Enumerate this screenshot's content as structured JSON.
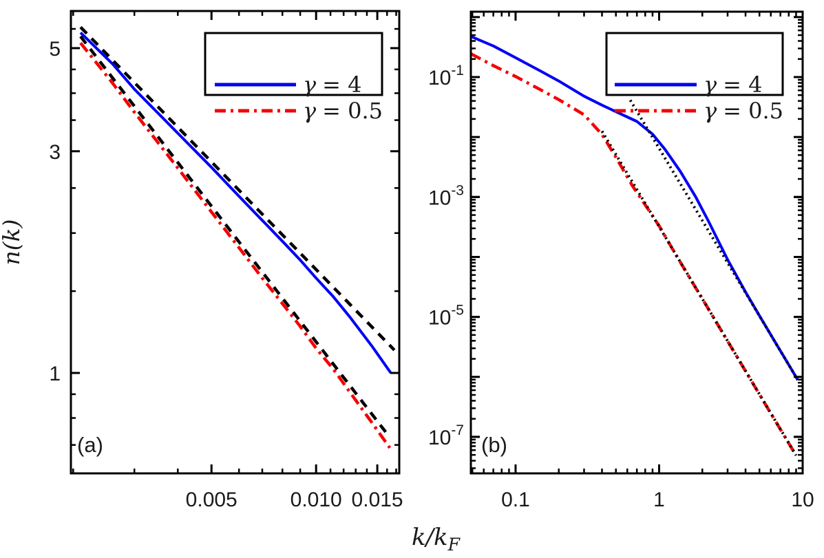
{
  "figure": {
    "background": "#ffffff",
    "xlabel": {
      "text": "k/k_F",
      "base": "k/k",
      "sub": "F"
    },
    "colors": {
      "blue": "#0000f5",
      "red": "#f50000",
      "black": "#000000",
      "text": "#1a1a1a",
      "axis": "#000000"
    },
    "legend": {
      "entries": [
        {
          "sym": "γ",
          "rest": "= 4",
          "label": "γ = 4",
          "color": "#0000f5",
          "style": "solid"
        },
        {
          "sym": "γ",
          "rest": "= 0.5",
          "label": "γ = 0.5",
          "color": "#f50000",
          "style": "dashdot"
        }
      ]
    }
  },
  "chart_data": [
    {
      "id": "a",
      "type": "line",
      "tag": "(a)",
      "ylabel": "n(k)",
      "x_scale": "log",
      "y_scale": "log",
      "xlim": [
        0.00197,
        0.01735
      ],
      "ylim": [
        0.608,
        6.01
      ],
      "x_ticks": [
        {
          "v": 0.005,
          "label": "0.005"
        },
        {
          "v": 0.01,
          "label": "0.010"
        },
        {
          "v": 0.015,
          "label": "0.015"
        }
      ],
      "x_minor": [
        0.002,
        0.003,
        0.004,
        0.006,
        0.007,
        0.008,
        0.009,
        0.011,
        0.012,
        0.013,
        0.014,
        0.016,
        0.017
      ],
      "y_ticks": [
        {
          "v": 1,
          "label": "1"
        },
        {
          "v": 3,
          "label": "3"
        },
        {
          "v": 5,
          "label": "5"
        }
      ],
      "y_minor": [
        0.7,
        0.8,
        0.9,
        1.5,
        2,
        2.5,
        3.5,
        4,
        4.5,
        5.5
      ],
      "series": [
        {
          "name": "gamma-4-curve",
          "legend": "γ = 4",
          "color": "#0000f5",
          "style": "solid",
          "points": [
            [
              0.0021,
              5.4
            ],
            [
              0.0026,
              4.62
            ],
            [
              0.003,
              4.08
            ],
            [
              0.004,
              3.28
            ],
            [
              0.005,
              2.77
            ],
            [
              0.006,
              2.4
            ],
            [
              0.007,
              2.13
            ],
            [
              0.008,
              1.92
            ],
            [
              0.009,
              1.75
            ],
            [
              0.01,
              1.6
            ],
            [
              0.0112,
              1.46
            ],
            [
              0.0125,
              1.32
            ],
            [
              0.0145,
              1.14
            ],
            [
              0.0164,
              1.0
            ]
          ]
        },
        {
          "name": "gamma-05-curve",
          "legend": "γ = 0.5",
          "color": "#f50000",
          "style": "dashdot",
          "points": [
            [
              0.0021,
              5.13
            ],
            [
              0.0026,
              4.2
            ],
            [
              0.003,
              3.64
            ],
            [
              0.004,
              2.76
            ],
            [
              0.005,
              2.22
            ],
            [
              0.006,
              1.86
            ],
            [
              0.007,
              1.6
            ],
            [
              0.008,
              1.41
            ],
            [
              0.009,
              1.26
            ],
            [
              0.01,
              1.13
            ],
            [
              0.0112,
              1.02
            ],
            [
              0.0125,
              0.91
            ],
            [
              0.0145,
              0.78
            ],
            [
              0.0163,
              0.69
            ]
          ]
        },
        {
          "name": "asymptote-gamma-4",
          "color": "#000000",
          "style": "dashed",
          "points": [
            [
              0.0021,
              5.55
            ],
            [
              0.0168,
              1.12
            ]
          ]
        },
        {
          "name": "asymptote-gamma-05",
          "color": "#000000",
          "style": "dashed",
          "points": [
            [
              0.0021,
              5.3
            ],
            [
              0.016,
              0.74
            ]
          ]
        }
      ]
    },
    {
      "id": "b",
      "type": "line",
      "tag": "(b)",
      "x_scale": "log",
      "y_scale": "log",
      "xlim": [
        0.0488,
        10
      ],
      "ylim": [
        2.46e-08,
        1.23
      ],
      "x_ticks": [
        {
          "v": 0.1,
          "label": "0.1"
        },
        {
          "v": 1,
          "label": "1"
        },
        {
          "v": 10,
          "label": "10"
        }
      ],
      "x_minor": [
        0.05,
        0.06,
        0.07,
        0.08,
        0.09,
        0.2,
        0.3,
        0.4,
        0.5,
        0.6,
        0.7,
        0.8,
        0.9,
        2,
        3,
        4,
        5,
        6,
        7,
        8,
        9
      ],
      "y_ticks": [
        {
          "v": 0.1,
          "base": "10",
          "exp": "-1"
        },
        {
          "v": 0.001,
          "base": "10",
          "exp": "-3"
        },
        {
          "v": 1e-05,
          "base": "10",
          "exp": "-5"
        },
        {
          "v": 1e-07,
          "base": "10",
          "exp": "-7"
        }
      ],
      "y_decades": [
        1,
        0.1,
        0.01,
        0.001,
        0.0001,
        1e-05,
        1e-06,
        1e-07
      ],
      "y_minor": "auto-log",
      "series": [
        {
          "name": "gamma-4-curve",
          "legend": "γ = 4",
          "color": "#0000f5",
          "style": "solid",
          "points": [
            [
              0.0488,
              0.475
            ],
            [
              0.07,
              0.33
            ],
            [
              0.1,
              0.21
            ],
            [
              0.15,
              0.125
            ],
            [
              0.2,
              0.086
            ],
            [
              0.3,
              0.048
            ],
            [
              0.4,
              0.034
            ],
            [
              0.5,
              0.0265
            ],
            [
              0.7,
              0.0182
            ],
            [
              0.9,
              0.0112
            ],
            [
              1.1,
              0.0062
            ],
            [
              1.4,
              0.0027
            ],
            [
              1.8,
              0.001
            ],
            [
              2.2,
              0.0004
            ],
            [
              3.0,
              9e-05
            ],
            [
              4.0,
              2.6e-05
            ],
            [
              5.0,
              1.05e-05
            ],
            [
              6.5,
              3.65e-06
            ],
            [
              8.0,
              1.59e-06
            ],
            [
              9.25,
              8.9e-07
            ]
          ]
        },
        {
          "name": "gamma-05-curve",
          "legend": "γ = 0.5",
          "color": "#f50000",
          "style": "dashdot",
          "points": [
            [
              0.0488,
              0.245
            ],
            [
              0.07,
              0.155
            ],
            [
              0.1,
              0.102
            ],
            [
              0.15,
              0.061
            ],
            [
              0.2,
              0.042
            ],
            [
              0.3,
              0.0235
            ],
            [
              0.4,
              0.011
            ],
            [
              0.5,
              0.0046
            ],
            [
              0.65,
              0.00155
            ],
            [
              0.8,
              0.00074
            ],
            [
              1.0,
              0.00033
            ],
            [
              1.3,
              0.000112
            ],
            [
              1.7,
              3.83e-05
            ],
            [
              2.2,
              1.37e-05
            ],
            [
              3.0,
              3.95e-06
            ],
            [
              4.0,
              1.25e-06
            ],
            [
              5.0,
              5.1e-07
            ],
            [
              6.5,
              1.79e-07
            ],
            [
              8.0,
              7.8e-08
            ],
            [
              9.0,
              4.9e-08
            ]
          ]
        },
        {
          "name": "k4-tail-gamma-4",
          "color": "#000000",
          "style": "dotted",
          "points": [
            [
              0.63,
              0.0412
            ],
            [
              9.25,
              8.9e-07
            ]
          ]
        },
        {
          "name": "k4-tail-gamma-05",
          "color": "#000000",
          "style": "dotted",
          "points": [
            [
              0.4,
              0.0125
            ],
            [
              9.0,
              4.9e-08
            ]
          ]
        }
      ]
    }
  ]
}
